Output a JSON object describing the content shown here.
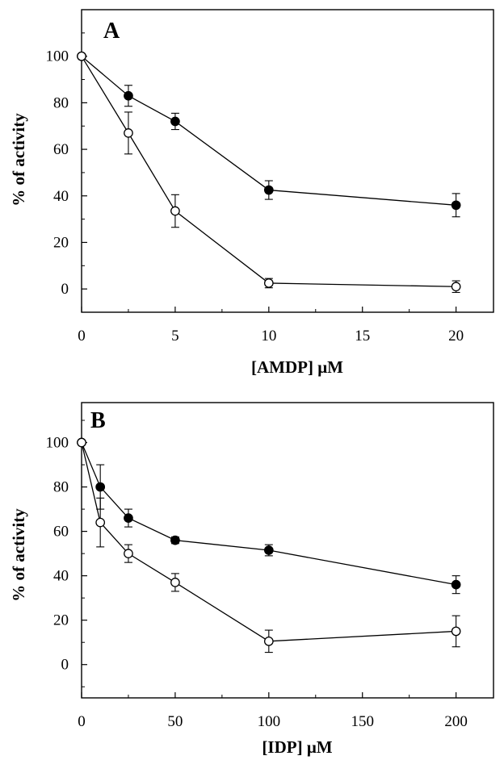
{
  "chart_data": [
    {
      "type": "line",
      "panel_label": "A",
      "xlabel": "[AMDP] μM",
      "ylabel": "% of activity",
      "xlim": [
        0,
        22
      ],
      "ylim": [
        -10,
        120
      ],
      "x_ticks": [
        0,
        5,
        10,
        15,
        20
      ],
      "y_ticks": [
        0,
        20,
        40,
        60,
        80,
        100
      ],
      "x_tick_labels": [
        "0",
        "5",
        "10",
        "15",
        "20"
      ],
      "y_tick_labels": [
        "0",
        "20",
        "40",
        "60",
        "80",
        "100"
      ],
      "grid": false,
      "legend": "none",
      "series": [
        {
          "marker": "filled-circle",
          "x": [
            0,
            2.5,
            5,
            10,
            20
          ],
          "y": [
            100,
            83,
            72,
            42.5,
            36
          ],
          "error": [
            0,
            4.5,
            3.5,
            4,
            5
          ]
        },
        {
          "marker": "open-circle",
          "x": [
            0,
            2.5,
            5,
            10,
            20
          ],
          "y": [
            100,
            67,
            33.5,
            2.5,
            1
          ],
          "error": [
            0,
            9,
            7,
            2,
            2.5
          ]
        }
      ]
    },
    {
      "type": "line",
      "panel_label": "B",
      "xlabel": "[IDP] μM",
      "ylabel": "% of activity",
      "xlim": [
        0,
        220
      ],
      "ylim": [
        -15,
        118
      ],
      "x_ticks": [
        0,
        50,
        100,
        150,
        200
      ],
      "y_ticks": [
        0,
        20,
        40,
        60,
        80,
        100
      ],
      "x_tick_labels": [
        "0",
        "50",
        "100",
        "150",
        "200"
      ],
      "y_tick_labels": [
        "0",
        "20",
        "40",
        "60",
        "80",
        "100"
      ],
      "grid": false,
      "legend": "none",
      "series": [
        {
          "marker": "filled-circle",
          "x": [
            0,
            10,
            25,
            50,
            100,
            200
          ],
          "y": [
            100,
            80,
            66,
            56,
            51.5,
            36
          ],
          "error": [
            0,
            10,
            4,
            1.5,
            2.5,
            4
          ]
        },
        {
          "marker": "open-circle",
          "x": [
            0,
            10,
            25,
            50,
            100,
            200
          ],
          "y": [
            100,
            64,
            50,
            37,
            10.5,
            15
          ],
          "error": [
            0,
            11,
            4,
            4,
            5,
            7
          ]
        }
      ]
    }
  ]
}
